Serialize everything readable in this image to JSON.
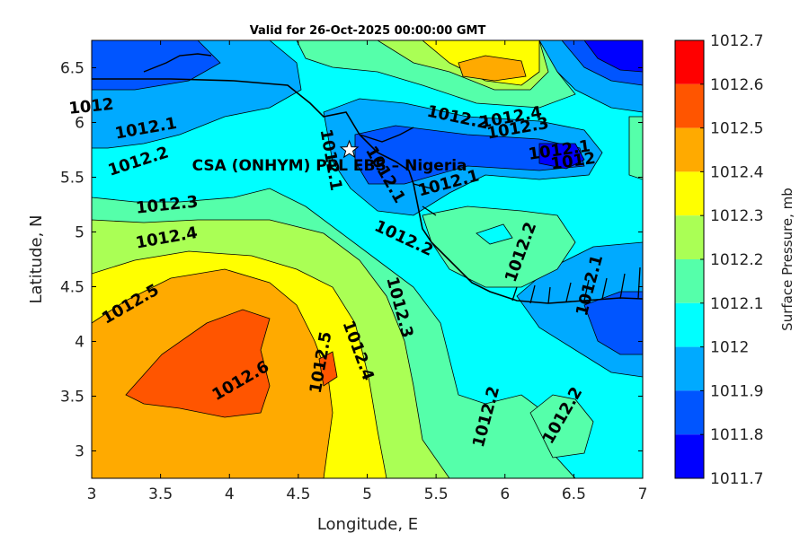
{
  "title": "Valid for 26-Oct-2025 00:00:00 GMT",
  "chart_data": {
    "type": "contour-map",
    "xlabel": "Longitude, E",
    "ylabel": "Latitude, N",
    "xlim": [
      3,
      7
    ],
    "ylim": [
      2.75,
      6.75
    ],
    "xticks": [
      "3",
      "3.5",
      "4",
      "4.5",
      "5",
      "5.5",
      "6",
      "6.5",
      "7"
    ],
    "xtick_values": [
      3,
      3.5,
      4,
      4.5,
      5,
      5.5,
      6,
      6.5,
      7
    ],
    "yticks": [
      "3",
      "3.5",
      "4",
      "4.5",
      "5",
      "5.5",
      "6",
      "6.5"
    ],
    "ytick_values": [
      3,
      3.5,
      4,
      4.5,
      5,
      5.5,
      6,
      6.5
    ],
    "colorbar": {
      "label": "Surface Pressure, mb",
      "levels": [
        "1012.7",
        "1012.6",
        "1012.5",
        "1012.4",
        "1012.3",
        "1012.2",
        "1012.1",
        "1012",
        "1011.9",
        "1011.8",
        "1011.7"
      ],
      "colors": [
        "#ff0000",
        "#ff5500",
        "#ffaa00",
        "#ffff00",
        "#aaff55",
        "#55ffaa",
        "#00ffff",
        "#00aaff",
        "#0055ff",
        "#0000ff",
        "#0000aa"
      ]
    },
    "contour_labels": [
      {
        "text": "1012.2",
        "lon": 5.65,
        "lat": 6.0
      },
      {
        "text": "1012.4",
        "lon": 6.05,
        "lat": 6.0
      },
      {
        "text": "1012.3",
        "lon": 6.1,
        "lat": 5.9
      },
      {
        "text": "1012.1",
        "lon": 6.4,
        "lat": 5.7
      },
      {
        "text": "1012",
        "lon": 6.5,
        "lat": 5.6
      },
      {
        "text": "1012",
        "lon": 3.0,
        "lat": 6.1
      },
      {
        "text": "1012.1",
        "lon": 3.4,
        "lat": 5.9
      },
      {
        "text": "1012.2",
        "lon": 3.35,
        "lat": 5.6
      },
      {
        "text": "1012.3",
        "lon": 3.55,
        "lat": 5.2
      },
      {
        "text": "1012.4",
        "lon": 3.55,
        "lat": 4.9
      },
      {
        "text": "1012.5",
        "lon": 3.3,
        "lat": 4.3
      },
      {
        "text": "1012.6",
        "lon": 4.1,
        "lat": 3.6
      },
      {
        "text": "1012.5",
        "lon": 4.7,
        "lat": 3.8
      },
      {
        "text": "1012.4",
        "lon": 4.9,
        "lat": 3.9
      },
      {
        "text": "1012.3",
        "lon": 5.2,
        "lat": 4.3
      },
      {
        "text": "1012.2",
        "lon": 5.25,
        "lat": 4.9
      },
      {
        "text": "1012.1",
        "lon": 4.7,
        "lat": 5.65
      },
      {
        "text": "1012.1",
        "lon": 5.1,
        "lat": 5.5
      },
      {
        "text": "1012.1",
        "lon": 5.6,
        "lat": 5.4
      },
      {
        "text": "1012.2",
        "lon": 6.15,
        "lat": 4.8
      },
      {
        "text": "1012.1",
        "lon": 6.65,
        "lat": 4.5
      },
      {
        "text": "1012.2",
        "lon": 5.9,
        "lat": 3.3
      },
      {
        "text": "1012.2",
        "lon": 6.45,
        "lat": 3.3
      }
    ],
    "marker": {
      "label": "CSA (ONHYM) PPL EBS – Nigeria",
      "lon": 4.87,
      "lat": 5.75
    }
  }
}
